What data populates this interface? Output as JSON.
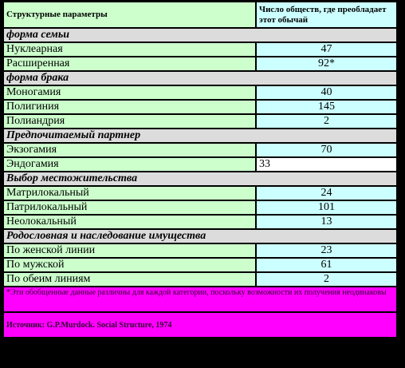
{
  "header": {
    "col1": "Структурные параметры",
    "col2": "Число обществ, где преобладает этот обычай"
  },
  "sections": [
    {
      "title": "форма семьи",
      "rows": [
        {
          "label": "Нуклеарная",
          "value": 47
        },
        {
          "label": "Расширенная",
          "value": "92*"
        }
      ]
    },
    {
      "title": "форма брака",
      "rows": [
        {
          "label": "Моногамия",
          "value": 40
        },
        {
          "label": "Полигиния",
          "value": 145
        },
        {
          "label": "Полиандрия",
          "value": 2
        }
      ]
    },
    {
      "title": "Предпочитаемый партнер",
      "rows": [
        {
          "label": "Экзогамия",
          "value": 70
        },
        {
          "label": "Эндогамия",
          "value": 33,
          "value_color": "#ffffff",
          "value_align": "left"
        }
      ]
    },
    {
      "title": "Выбор местожительства",
      "rows": [
        {
          "label": "Матрилокальный",
          "value": 24
        },
        {
          "label": "Патрилокальный",
          "value": 101
        },
        {
          "label": "Неолокальный",
          "value": 13
        }
      ]
    },
    {
      "title": "Родословная и наследование имущества",
      "rows": [
        {
          "label": "По женской линии",
          "value": 23
        },
        {
          "label": "По мужской",
          "value": 61
        },
        {
          "label": "По обеим линиям",
          "value": 2
        }
      ]
    }
  ],
  "footnote": "*Эти обобщенные данные различны для каждой категории, поскольку возможности их получения неодинаковы",
  "source": "Источник: G.P.Murdock. Social Structure, 1974"
}
